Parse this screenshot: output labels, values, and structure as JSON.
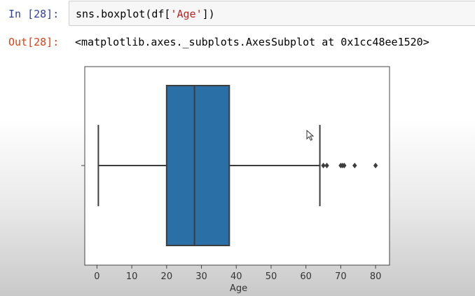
{
  "cell": {
    "in_prompt": "In [28]:",
    "code_prefix": "sns.boxplot(df[",
    "code_string": "'Age'",
    "code_suffix": "])",
    "out_prompt": "Out[28]:",
    "output_text": "<matplotlib.axes._subplots.AxesSubplot at 0x1cc48ee1520>"
  },
  "colors": {
    "box_fill": "#2a6fa6",
    "line": "#3d3d3d",
    "in_prompt": "#303f9f",
    "out_prompt": "#d84315"
  },
  "chart_data": {
    "type": "box",
    "xlabel": "Age",
    "xlim": [
      -3.5,
      84
    ],
    "xticks": [
      0,
      10,
      20,
      30,
      40,
      50,
      60,
      70,
      80
    ],
    "box": {
      "whisker_low": 0.4,
      "q1": 20,
      "median": 28,
      "q3": 38,
      "whisker_high": 64
    },
    "outliers": [
      65,
      66,
      70,
      70.5,
      71,
      74,
      80
    ]
  }
}
